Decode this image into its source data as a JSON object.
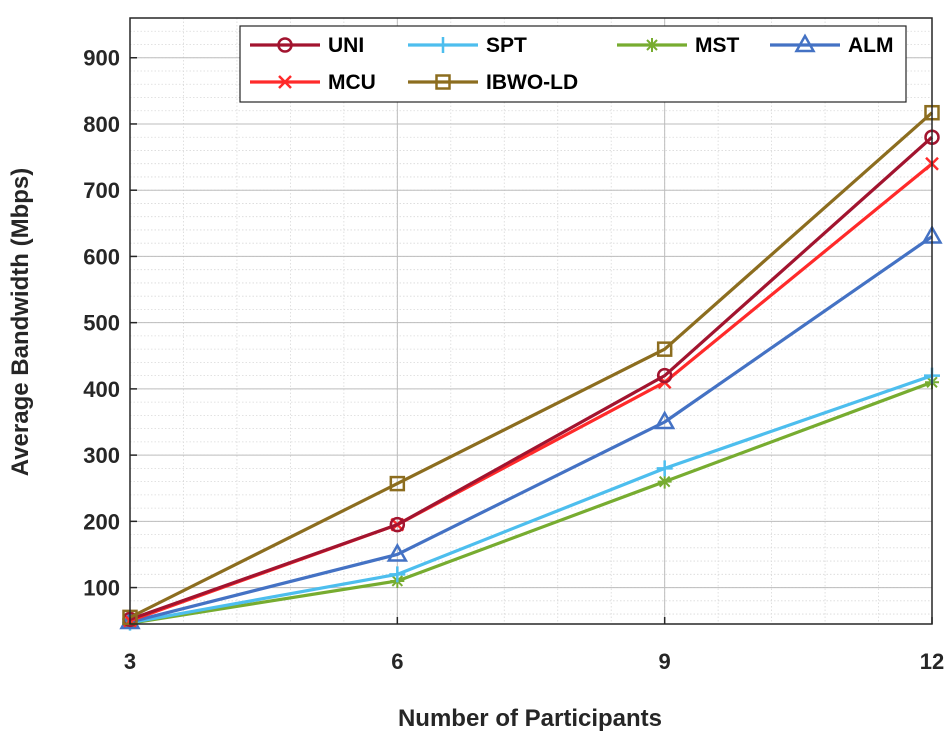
{
  "chart_data": {
    "type": "line",
    "xlabel": "Number of Participants",
    "ylabel": "Average Bandwidth (Mbps)",
    "x": [
      3,
      6,
      9,
      12
    ],
    "xticks": [
      "3",
      "6",
      "9",
      "12"
    ],
    "yticks": [
      "100",
      "200",
      "300",
      "400",
      "500",
      "600",
      "700",
      "800",
      "900"
    ],
    "xlim": [
      3,
      12
    ],
    "ylim": [
      45,
      960
    ],
    "grid": true,
    "minor_grid": true,
    "legend_position": "top",
    "series": [
      {
        "name": "UNI",
        "values": [
          52,
          195,
          420,
          780
        ],
        "color": "#a2142f",
        "marker": "circle"
      },
      {
        "name": "SPT",
        "values": [
          47,
          120,
          280,
          420
        ],
        "color": "#4dbeee",
        "marker": "plus"
      },
      {
        "name": "MST",
        "values": [
          46,
          110,
          260,
          410
        ],
        "color": "#77ac30",
        "marker": "asterisk"
      },
      {
        "name": "ALM",
        "values": [
          48,
          150,
          350,
          630
        ],
        "color": "#4472c4",
        "marker": "triangle"
      },
      {
        "name": "MCU",
        "values": [
          50,
          195,
          410,
          740
        ],
        "color": "#ff2a2a",
        "marker": "x"
      },
      {
        "name": "IBWO-LD",
        "values": [
          55,
          257,
          460,
          817
        ],
        "color": "#8c6d1f",
        "marker": "square"
      }
    ]
  }
}
